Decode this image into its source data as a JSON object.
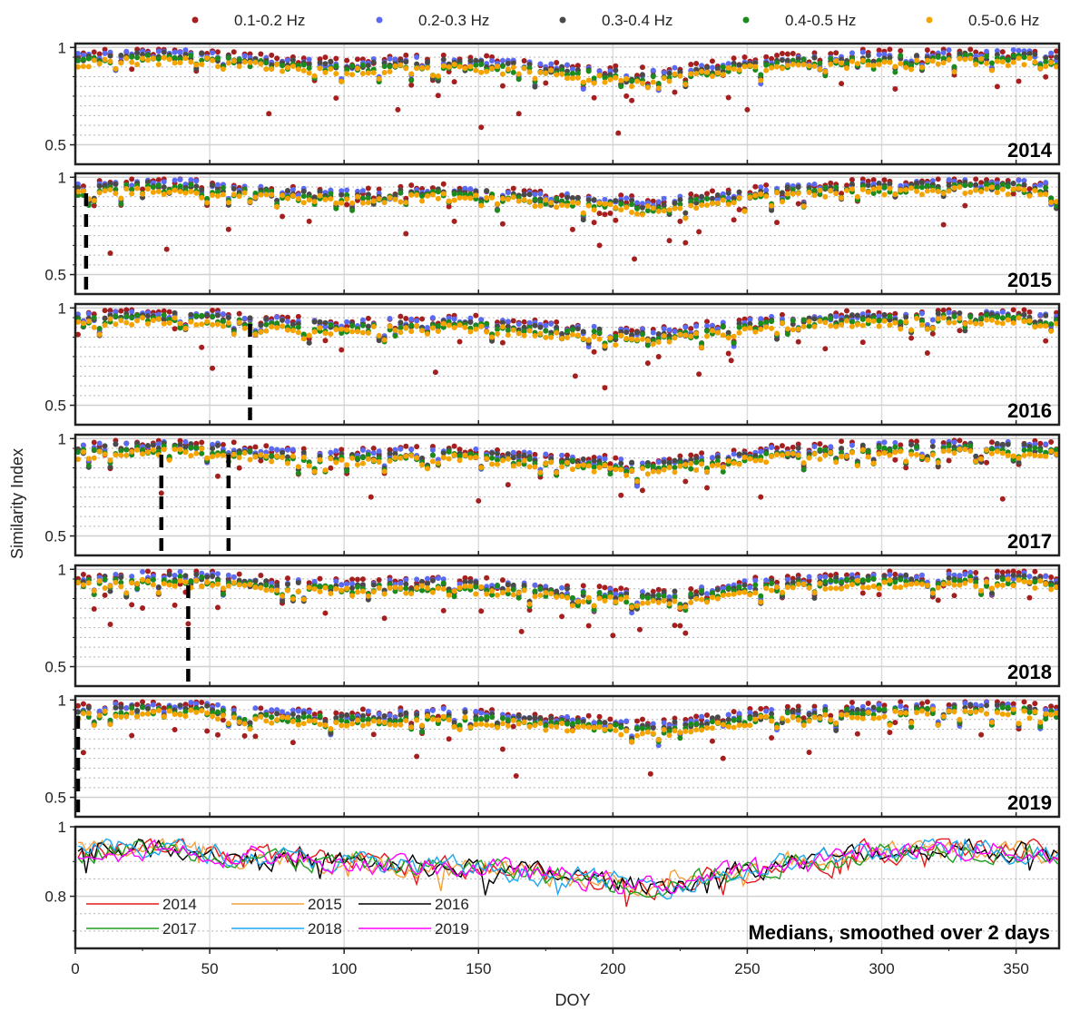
{
  "chart_data": {
    "type": "scatter",
    "ylabel": "Similarity Index",
    "xlabel": "DOY",
    "xlim": [
      0,
      366
    ],
    "x_ticks": [
      0,
      50,
      100,
      150,
      200,
      250,
      300,
      350
    ],
    "legend": {
      "placement": "top",
      "entries": [
        {
          "name": "0.1-0.2 Hz",
          "color": "#a51f1f"
        },
        {
          "name": "0.2-0.3 Hz",
          "color": "#5b6af2"
        },
        {
          "name": "0.3-0.4 Hz",
          "color": "#4a4a4a"
        },
        {
          "name": "0.4-0.5 Hz",
          "color": "#1d8a1d"
        },
        {
          "name": "0.5-0.6 Hz",
          "color": "#f5a300"
        }
      ]
    },
    "panels": [
      {
        "year": "2014",
        "ylim": [
          0.4,
          1.02
        ],
        "yticks": [
          0.5,
          1
        ],
        "ytick_labels": [
          "0.5",
          "1"
        ],
        "markers_doy": []
      },
      {
        "year": "2015",
        "ylim": [
          0.4,
          1.02
        ],
        "yticks": [
          0.5,
          1
        ],
        "ytick_labels": [
          "0.5",
          "1"
        ],
        "markers_doy": [
          4
        ]
      },
      {
        "year": "2016",
        "ylim": [
          0.4,
          1.02
        ],
        "yticks": [
          0.5,
          1
        ],
        "ytick_labels": [
          "0.5",
          "1"
        ],
        "markers_doy": [
          65
        ]
      },
      {
        "year": "2017",
        "ylim": [
          0.4,
          1.02
        ],
        "yticks": [
          0.5,
          1
        ],
        "ytick_labels": [
          "0.5",
          "1"
        ],
        "markers_doy": [
          32,
          57
        ]
      },
      {
        "year": "2018",
        "ylim": [
          0.4,
          1.02
        ],
        "yticks": [
          0.5,
          1
        ],
        "ytick_labels": [
          "0.5",
          "1"
        ],
        "markers_doy": [
          42
        ]
      },
      {
        "year": "2019",
        "ylim": [
          0.4,
          1.02
        ],
        "yticks": [
          0.5,
          1
        ],
        "ytick_labels": [
          "0.5",
          "1"
        ],
        "markers_doy": [
          1
        ]
      }
    ],
    "scatter_shape": {
      "baseline": [
        [
          0,
          0.93
        ],
        [
          20,
          0.95
        ],
        [
          45,
          0.95
        ],
        [
          60,
          0.93
        ],
        [
          80,
          0.91
        ],
        [
          100,
          0.9
        ],
        [
          120,
          0.91
        ],
        [
          140,
          0.92
        ],
        [
          160,
          0.9
        ],
        [
          180,
          0.88
        ],
        [
          200,
          0.86
        ],
        [
          215,
          0.85
        ],
        [
          235,
          0.88
        ],
        [
          260,
          0.92
        ],
        [
          290,
          0.94
        ],
        [
          320,
          0.95
        ],
        [
          350,
          0.95
        ],
        [
          366,
          0.93
        ]
      ],
      "dips": {
        "2014": [
          [
            72,
            0.66
          ],
          [
            97,
            0.74
          ],
          [
            120,
            0.68
          ],
          [
            151,
            0.59
          ],
          [
            165,
            0.66
          ],
          [
            202,
            0.56
          ],
          [
            250,
            0.68
          ]
        ],
        "2015": [
          [
            13,
            0.61
          ],
          [
            34,
            0.63
          ],
          [
            123,
            0.71
          ],
          [
            195,
            0.65
          ],
          [
            208,
            0.58
          ],
          [
            232,
            0.72
          ]
        ],
        "2016": [
          [
            51,
            0.69
          ],
          [
            134,
            0.67
          ],
          [
            186,
            0.65
          ],
          [
            197,
            0.59
          ],
          [
            232,
            0.66
          ],
          [
            244,
            0.73
          ]
        ],
        "2017": [
          [
            32,
            0.72
          ],
          [
            110,
            0.7
          ],
          [
            150,
            0.68
          ],
          [
            255,
            0.7
          ],
          [
            345,
            0.69
          ]
        ],
        "2018": [
          [
            42,
            0.72
          ],
          [
            166,
            0.68
          ],
          [
            200,
            0.66
          ],
          [
            210,
            0.69
          ],
          [
            225,
            0.71
          ]
        ],
        "2019": [
          [
            3,
            0.73
          ],
          [
            127,
            0.71
          ],
          [
            164,
            0.61
          ],
          [
            214,
            0.62
          ],
          [
            241,
            0.7
          ]
        ]
      }
    },
    "medians": {
      "title": "Medians, smoothed over 2 days",
      "ylim": [
        0.65,
        1.0
      ],
      "yticks": [
        0.8,
        1
      ],
      "ytick_labels": [
        "0.8",
        "1"
      ],
      "series": [
        {
          "name": "2014",
          "color": "#e31a1c"
        },
        {
          "name": "2015",
          "color": "#f4a03c"
        },
        {
          "name": "2016",
          "color": "#000000"
        },
        {
          "name": "2017",
          "color": "#1f9e1f"
        },
        {
          "name": "2018",
          "color": "#1ea7f0"
        },
        {
          "name": "2019",
          "color": "#ff00ff"
        }
      ],
      "trend": [
        [
          0,
          0.93
        ],
        [
          30,
          0.94
        ],
        [
          60,
          0.92
        ],
        [
          90,
          0.9
        ],
        [
          120,
          0.89
        ],
        [
          150,
          0.88
        ],
        [
          180,
          0.86
        ],
        [
          200,
          0.84
        ],
        [
          215,
          0.83
        ],
        [
          240,
          0.86
        ],
        [
          260,
          0.89
        ],
        [
          290,
          0.92
        ],
        [
          320,
          0.94
        ],
        [
          350,
          0.93
        ],
        [
          366,
          0.92
        ]
      ]
    }
  }
}
